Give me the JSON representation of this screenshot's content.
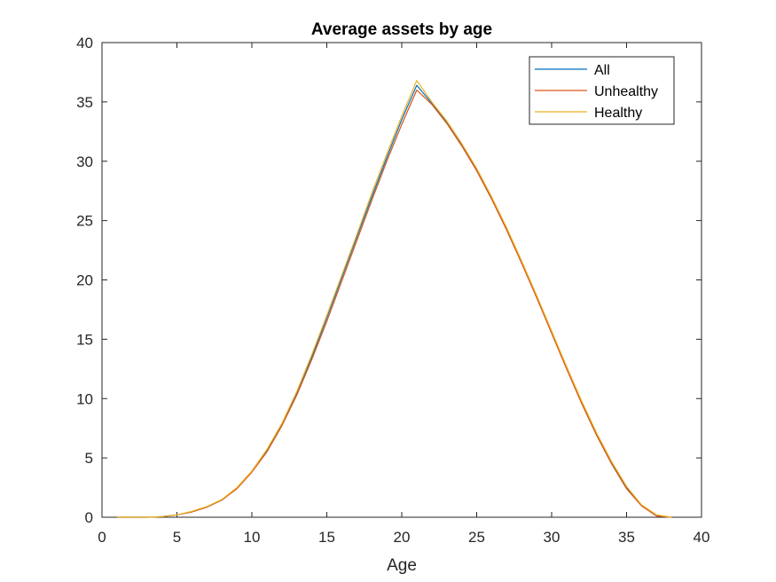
{
  "chart_data": {
    "type": "line",
    "title": "Average assets by age",
    "xlabel": "Age",
    "ylabel": "",
    "xlim": [
      0,
      40
    ],
    "ylim": [
      0,
      40
    ],
    "xticks": [
      0,
      5,
      10,
      15,
      20,
      25,
      30,
      35,
      40
    ],
    "yticks": [
      0,
      5,
      10,
      15,
      20,
      25,
      30,
      35,
      40
    ],
    "grid": false,
    "legend_position": "top-right",
    "x": [
      1,
      2,
      3,
      4,
      5,
      6,
      7,
      8,
      9,
      10,
      11,
      12,
      13,
      14,
      15,
      16,
      17,
      18,
      19,
      20,
      21,
      22,
      23,
      24,
      25,
      26,
      27,
      28,
      29,
      30,
      31,
      32,
      33,
      34,
      35,
      36,
      37,
      38
    ],
    "series": [
      {
        "name": "All",
        "color": "#0072BD",
        "values": [
          0,
          0,
          0,
          0.05,
          0.2,
          0.45,
          0.85,
          1.45,
          2.45,
          3.85,
          5.6,
          7.8,
          10.5,
          13.5,
          16.8,
          20.2,
          23.6,
          27.0,
          30.3,
          33.5,
          36.4,
          34.9,
          33.3,
          31.4,
          29.3,
          26.9,
          24.3,
          21.5,
          18.6,
          15.6,
          12.6,
          9.7,
          7.0,
          4.6,
          2.5,
          1.0,
          0.15,
          0
        ]
      },
      {
        "name": "Unhealthy",
        "color": "#D95319",
        "values": [
          0,
          0,
          0,
          0.05,
          0.2,
          0.45,
          0.85,
          1.45,
          2.4,
          3.8,
          5.5,
          7.7,
          10.3,
          13.3,
          16.5,
          19.9,
          23.3,
          26.7,
          30.0,
          33.1,
          36.0,
          34.8,
          33.2,
          31.3,
          29.2,
          26.8,
          24.2,
          21.4,
          18.5,
          15.5,
          12.5,
          9.6,
          6.9,
          4.5,
          2.4,
          0.95,
          0.1,
          0
        ]
      },
      {
        "name": "Healthy",
        "color": "#EDB120",
        "values": [
          0,
          0,
          0,
          0.05,
          0.2,
          0.5,
          0.9,
          1.5,
          2.5,
          3.9,
          5.7,
          7.9,
          10.6,
          13.7,
          17.0,
          20.4,
          23.8,
          27.3,
          30.6,
          33.8,
          36.8,
          35.0,
          33.4,
          31.5,
          29.4,
          27.0,
          24.4,
          21.6,
          18.7,
          15.7,
          12.7,
          9.8,
          7.1,
          4.7,
          2.6,
          1.05,
          0.2,
          0
        ]
      }
    ]
  }
}
